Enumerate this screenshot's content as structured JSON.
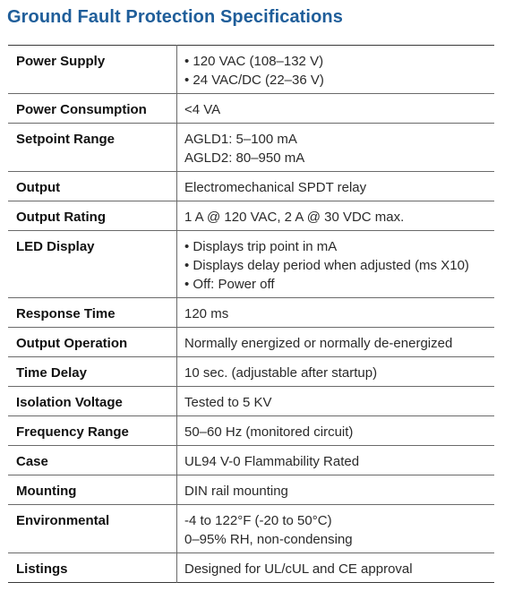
{
  "title": "Ground Fault Protection Specifications",
  "rows": [
    {
      "label": "Power Supply",
      "lines": [
        "• 120 VAC (108–132 V)",
        "• 24 VAC/DC (22–36 V)"
      ]
    },
    {
      "label": "Power Consumption",
      "lines": [
        "<4 VA"
      ]
    },
    {
      "label": "Setpoint Range",
      "lines": [
        "AGLD1: 5–100 mA",
        "AGLD2: 80–950 mA"
      ]
    },
    {
      "label": "Output",
      "lines": [
        "Electromechanical SPDT relay"
      ]
    },
    {
      "label": "Output Rating",
      "lines": [
        "1 A @ 120 VAC, 2 A @ 30 VDC max."
      ]
    },
    {
      "label": "LED Display",
      "lines": [
        "• Displays trip point in mA",
        "• Displays delay period when adjusted (ms X10)",
        "• Off: Power off"
      ]
    },
    {
      "label": "Response Time",
      "lines": [
        "120 ms"
      ]
    },
    {
      "label": "Output Operation",
      "lines": [
        "Normally energized or normally de-energized"
      ]
    },
    {
      "label": "Time Delay",
      "lines": [
        "10 sec. (adjustable after startup)"
      ]
    },
    {
      "label": "Isolation Voltage",
      "lines": [
        "Tested to 5 KV"
      ]
    },
    {
      "label": "Frequency Range",
      "lines": [
        "50–60 Hz (monitored circuit)"
      ]
    },
    {
      "label": "Case",
      "lines": [
        "UL94 V-0 Flammability Rated"
      ]
    },
    {
      "label": "Mounting",
      "lines": [
        "DIN rail mounting"
      ]
    },
    {
      "label": "Environmental",
      "lines": [
        "-4 to 122°F (-20 to 50°C)",
        "0–95% RH, non-condensing"
      ]
    },
    {
      "label": "Listings",
      "lines": [
        "Designed for UL/cUL and CE approval"
      ]
    }
  ]
}
